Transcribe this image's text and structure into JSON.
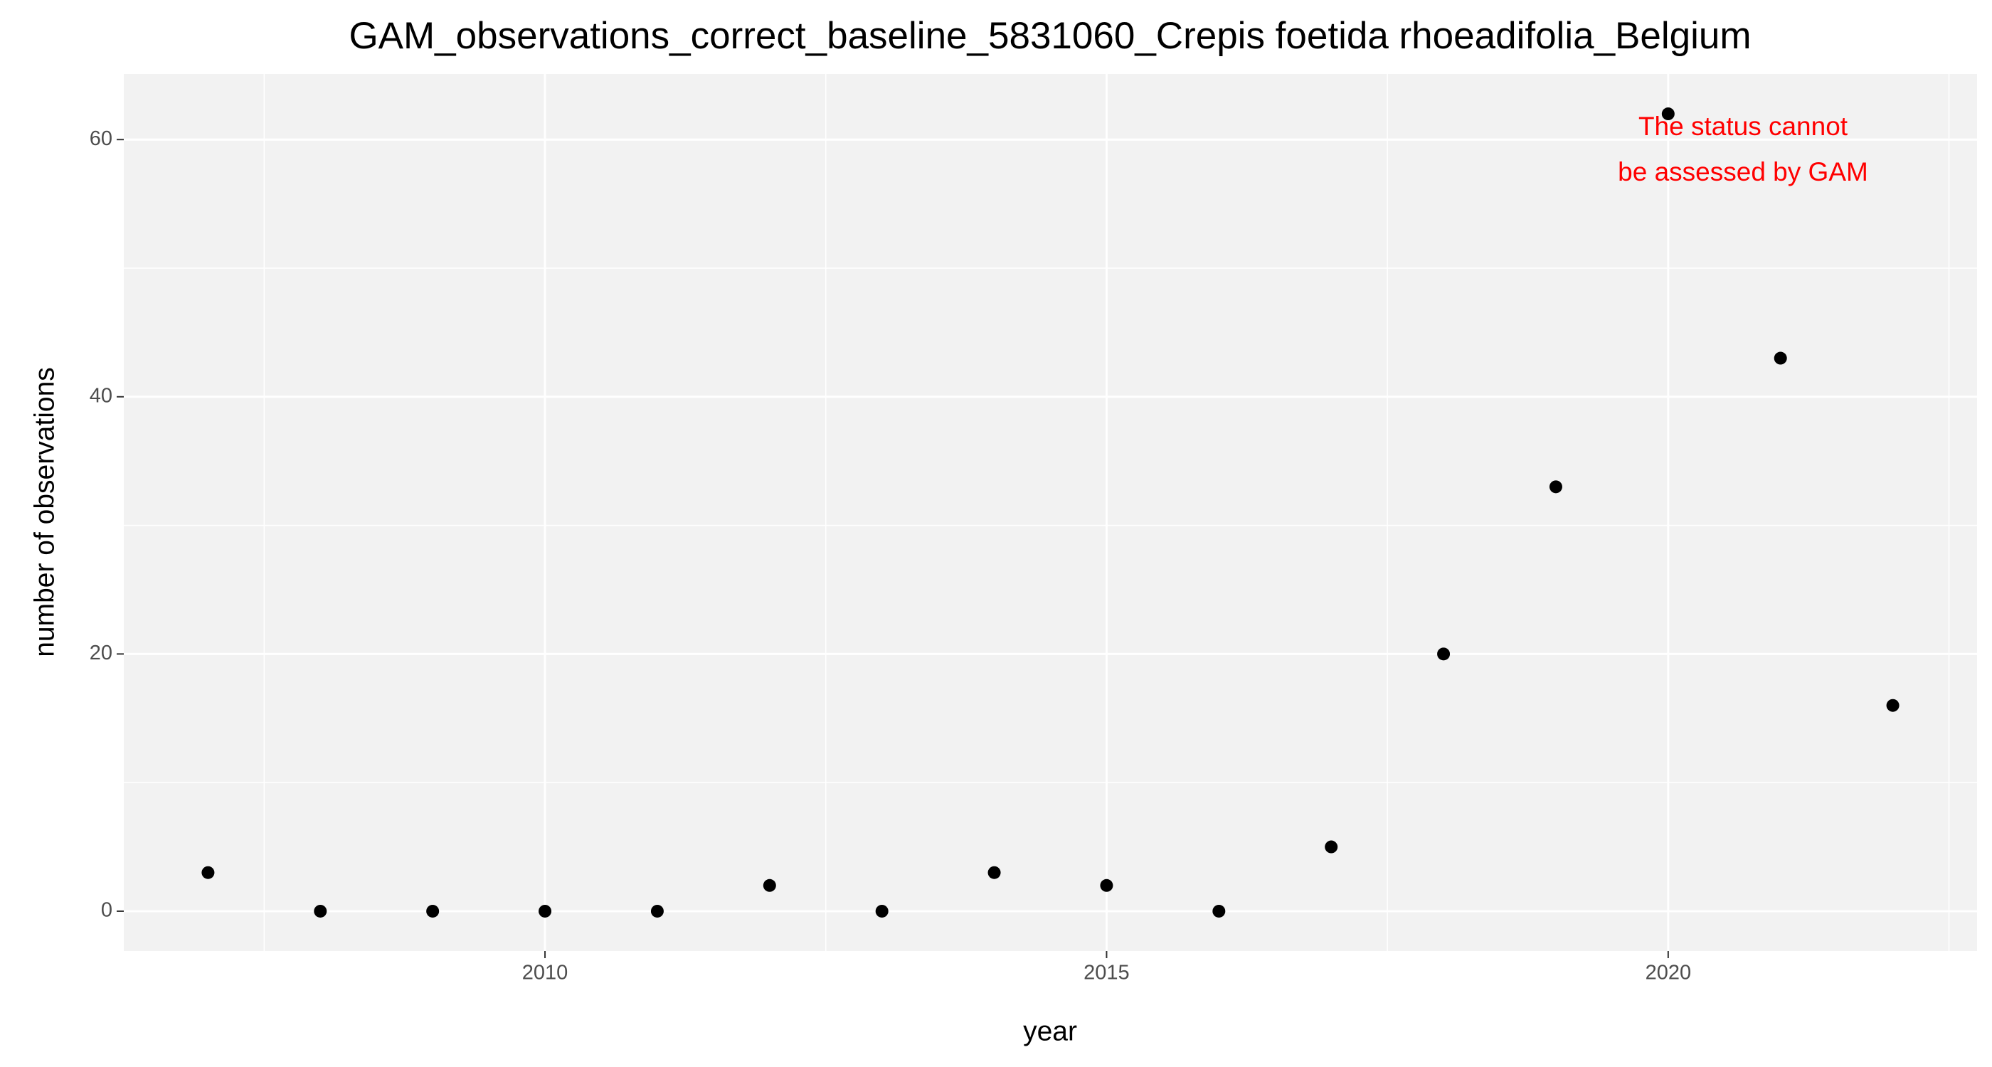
{
  "chart_data": {
    "type": "scatter",
    "title": "GAM_observations_correct_baseline_5831060_Crepis foetida rhoeadifolia_Belgium",
    "x_label": "year",
    "y_label": "number of observations",
    "x": [
      2007,
      2008,
      2009,
      2010,
      2011,
      2012,
      2013,
      2014,
      2015,
      2016,
      2017,
      2018,
      2019,
      2020,
      2021,
      2022
    ],
    "values": [
      3,
      0,
      0,
      0,
      0,
      2,
      0,
      3,
      2,
      0,
      5,
      20,
      33,
      62,
      43,
      16
    ],
    "color": "#000000",
    "xlim": [
      2006.25,
      2022.75
    ],
    "ylim": [
      -3.1,
      65.1
    ],
    "xticks": [
      2010,
      2015,
      2020
    ],
    "yticks": [
      0,
      20,
      40,
      60
    ],
    "x_minor_breaks": [
      2007.5,
      2012.5,
      2017.5,
      2022.5
    ],
    "y_minor_breaks": [
      10,
      30,
      50
    ],
    "grid": true,
    "annotation": [
      "The status cannot",
      "be assessed by GAM"
    ],
    "annotation_color": "#ff0000"
  }
}
